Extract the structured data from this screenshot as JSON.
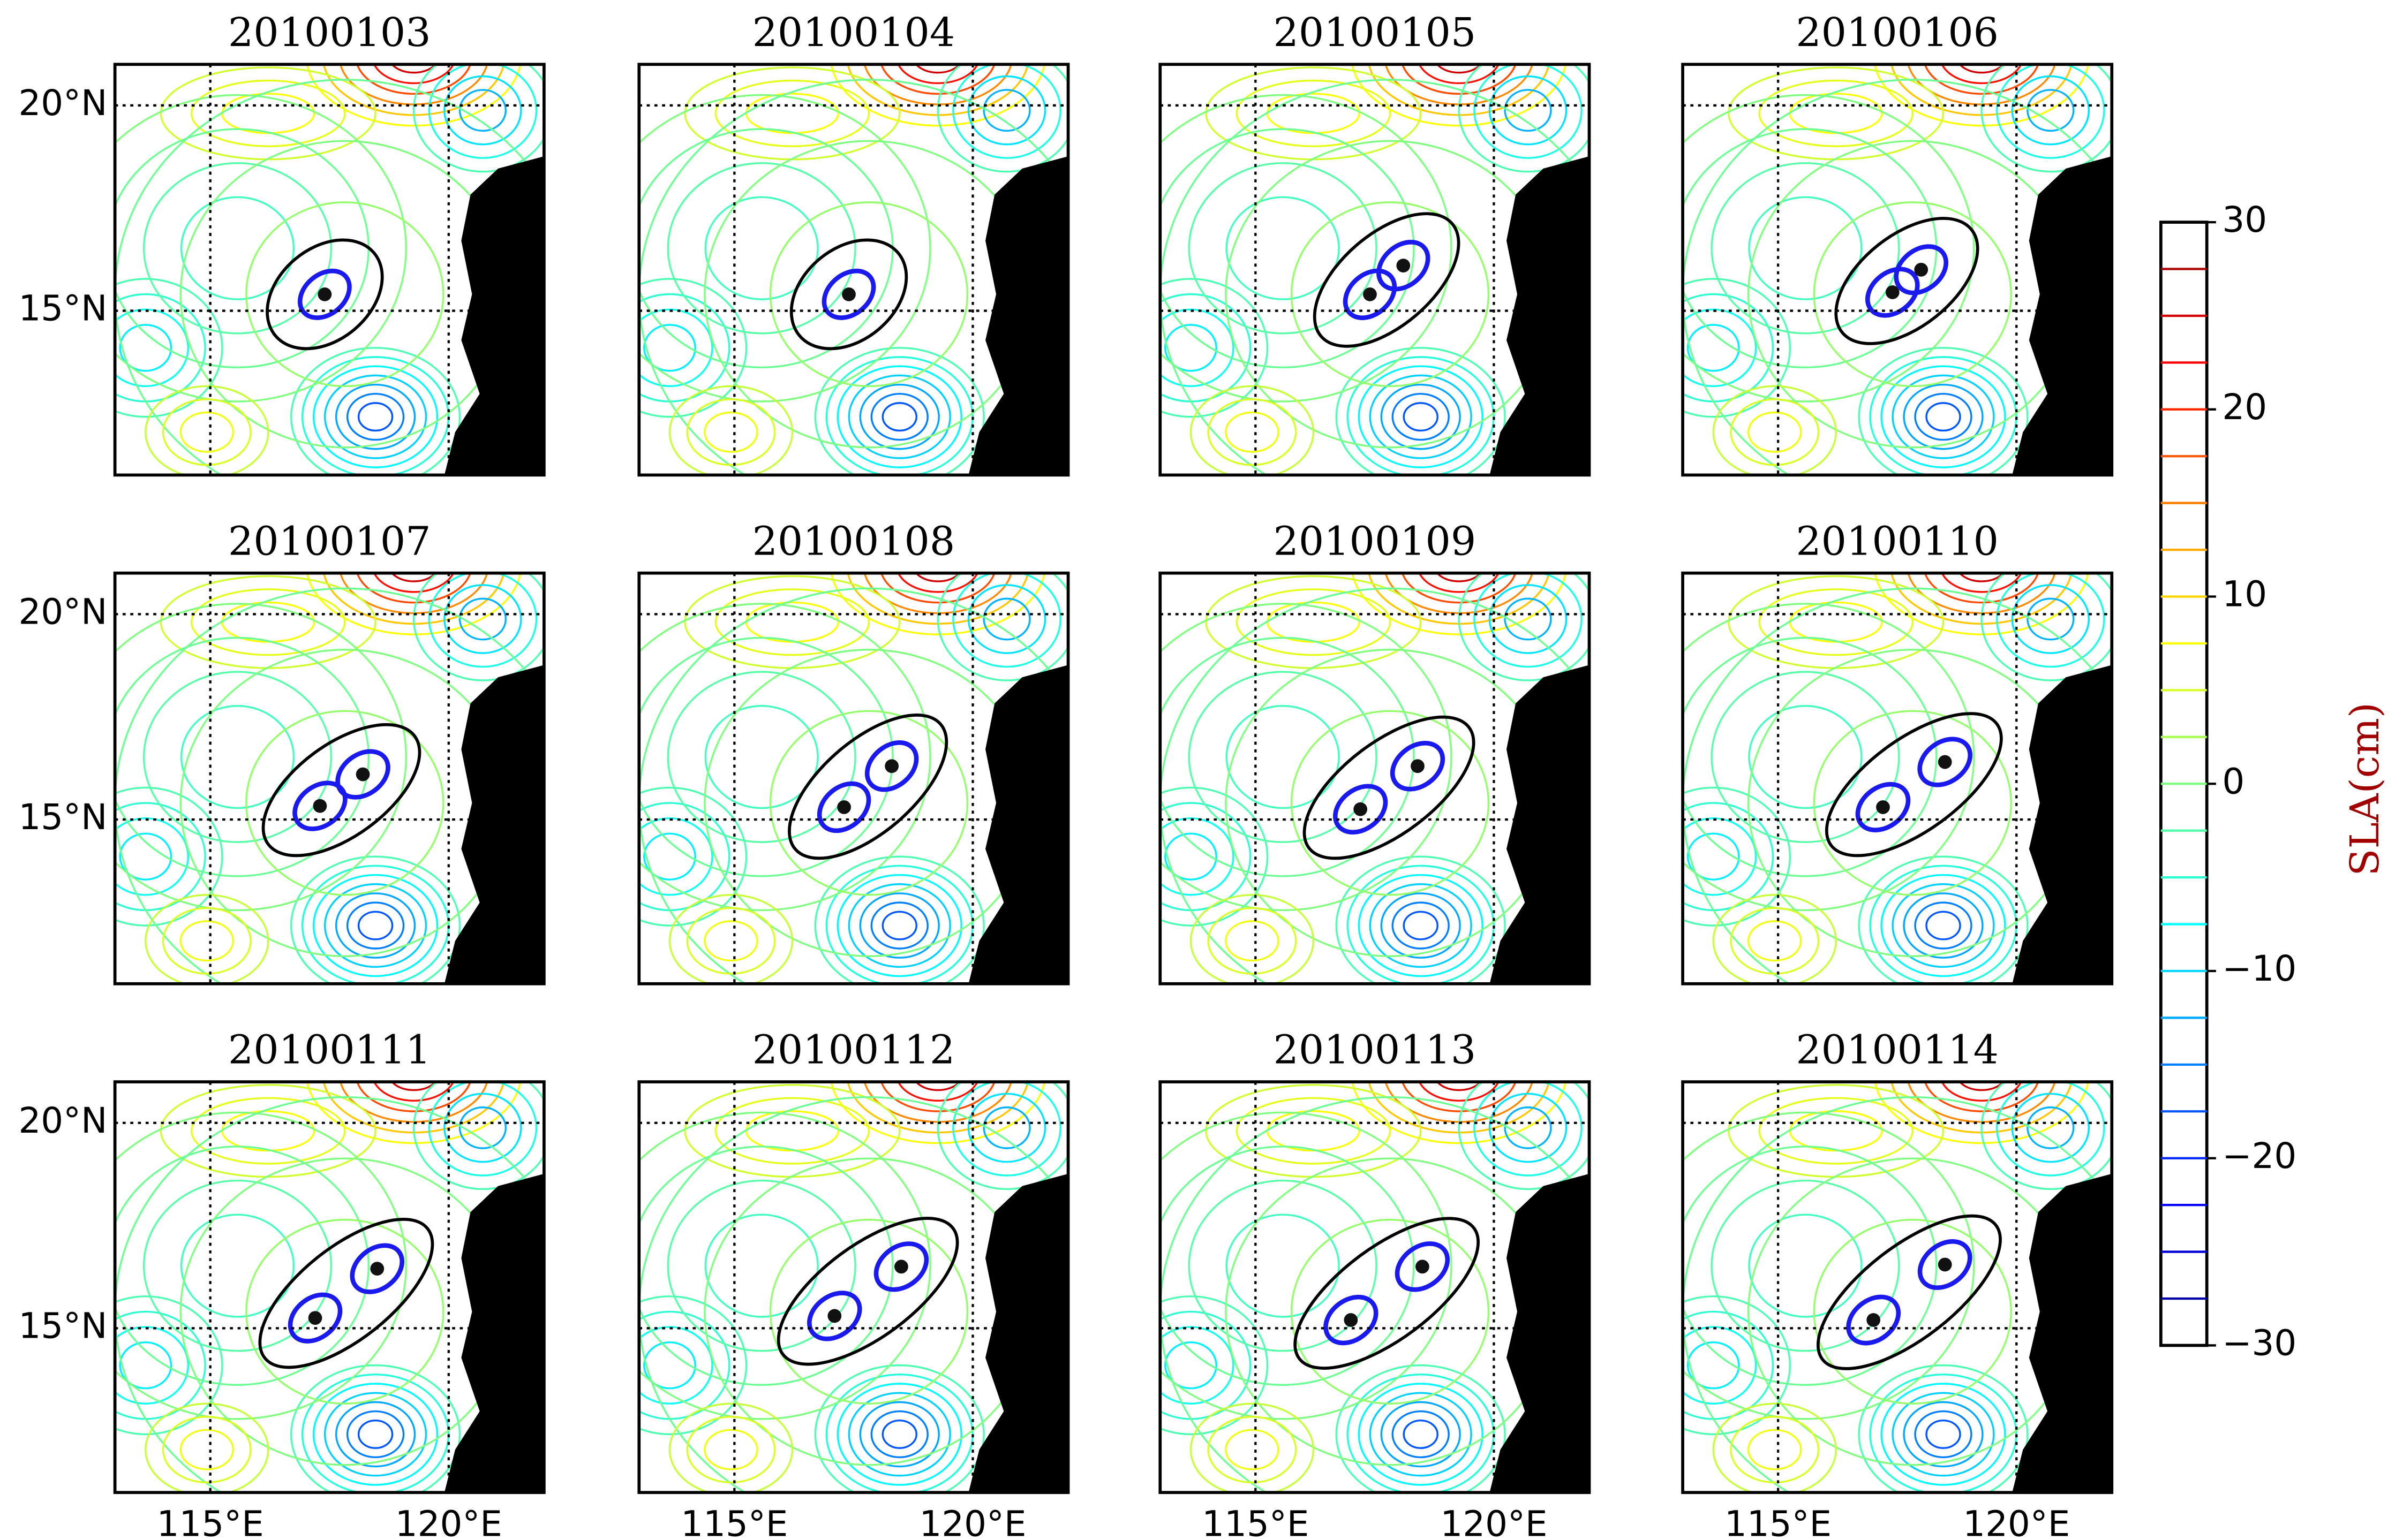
{
  "chart_data": {
    "type": "scatter",
    "xlim": [
      113,
      122
    ],
    "ylim": [
      11,
      21
    ],
    "xticks": [
      {
        "value": 115,
        "label": "115°E"
      },
      {
        "value": 120,
        "label": "120°E"
      }
    ],
    "yticks": [
      {
        "value": 15,
        "label": "15°N"
      },
      {
        "value": 20,
        "label": "20°N"
      }
    ],
    "grid": true,
    "panels": [
      {
        "title": "20100103",
        "x": [
          117.4
        ],
        "y": [
          15.4
        ]
      },
      {
        "title": "20100104",
        "x": [
          117.4
        ],
        "y": [
          15.4
        ]
      },
      {
        "title": "20100105",
        "x": [
          117.4,
          118.1
        ],
        "y": [
          15.4,
          16.1
        ]
      },
      {
        "title": "20100106",
        "x": [
          117.4,
          118.0
        ],
        "y": [
          15.45,
          16.0
        ]
      },
      {
        "title": "20100107",
        "x": [
          117.3,
          118.2
        ],
        "y": [
          15.33,
          16.1
        ]
      },
      {
        "title": "20100108",
        "x": [
          117.3,
          118.3
        ],
        "y": [
          15.3,
          16.3
        ]
      },
      {
        "title": "20100109",
        "x": [
          117.2,
          118.4
        ],
        "y": [
          15.25,
          16.3
        ]
      },
      {
        "title": "20100110",
        "x": [
          117.2,
          118.5
        ],
        "y": [
          15.3,
          16.4
        ]
      },
      {
        "title": "20100111",
        "x": [
          117.2,
          118.5
        ],
        "y": [
          15.25,
          16.45
        ]
      },
      {
        "title": "20100112",
        "x": [
          117.1,
          118.5
        ],
        "y": [
          15.3,
          16.5
        ]
      },
      {
        "title": "20100113",
        "x": [
          117.0,
          118.5
        ],
        "y": [
          15.2,
          16.5
        ]
      },
      {
        "title": "20100114",
        "x": [
          117.0,
          118.5
        ],
        "y": [
          15.2,
          16.55
        ]
      }
    ],
    "colorbar": {
      "label": "SLA(cm)",
      "lim": [
        -30,
        30
      ],
      "ticks": [
        {
          "value": -30,
          "label": "−30"
        },
        {
          "value": -20,
          "label": "−20"
        },
        {
          "value": -10,
          "label": "−10"
        },
        0,
        10,
        20,
        30
      ]
    }
  }
}
